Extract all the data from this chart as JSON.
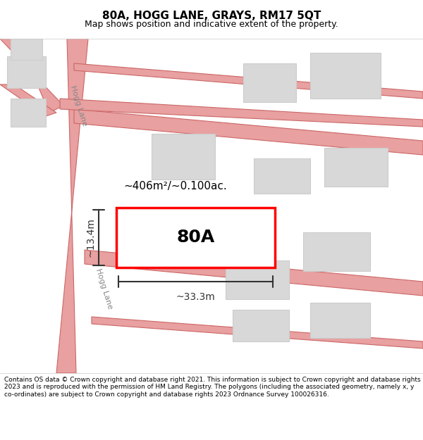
{
  "title": "80A, HOGG LANE, GRAYS, RM17 5QT",
  "subtitle": "Map shows position and indicative extent of the property.",
  "copyright_text": "Contains OS data © Crown copyright and database right 2021. This information is subject to Crown copyright and database rights 2023 and is reproduced with the permission of HM Land Registry. The polygons (including the associated geometry, namely x, y co-ordinates) are subject to Crown copyright and database rights 2023 Ordnance Survey 100026316.",
  "map_bg": "#f5f5f5",
  "title_area_bg": "#ffffff",
  "footer_bg": "#ffffff",
  "road_color": "#e8a0a0",
  "road_outline_color": "#cc6666",
  "building_fill": "#d8d8d8",
  "building_edge": "#cccccc",
  "property_fill": "#ffffff",
  "property_border": "#ff0000",
  "measure_color": "#333333",
  "area_label": "~406m²/~0.100ac.",
  "width_label": "~33.3m",
  "height_label": "~13.4m",
  "property_label": "80A",
  "road_label_1": "Hogg Lane",
  "road_label_2": "Hogg Lane"
}
